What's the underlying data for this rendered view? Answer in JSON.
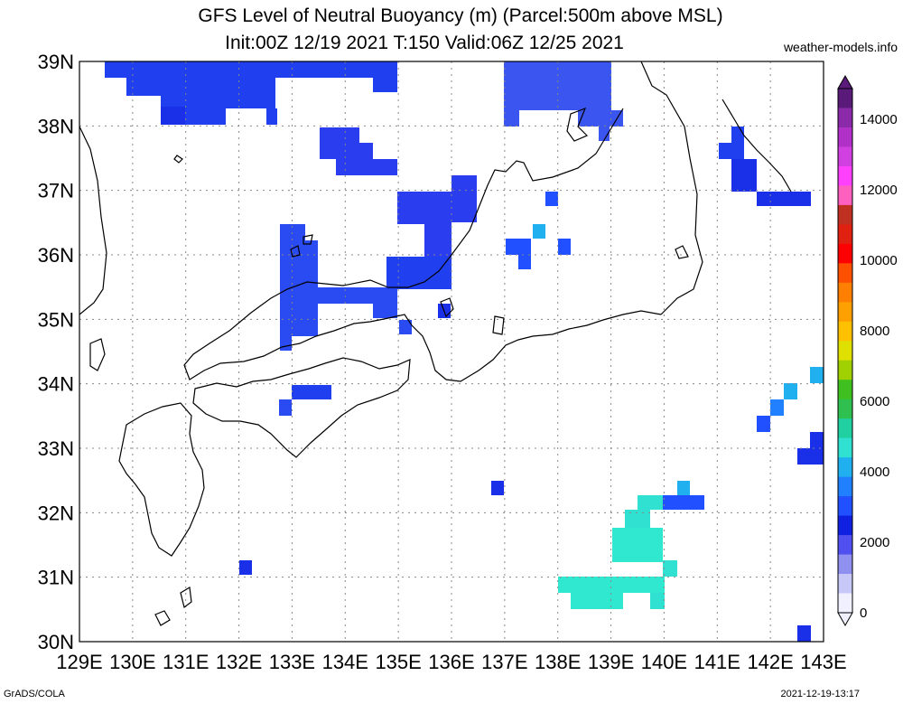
{
  "header": {
    "title": "GFS Level of Neutral Buoyancy (m) (Parcel:500m above MSL)",
    "subtitle": "Init:00Z 12/19 2021 T:150 Valid:06Z 12/25 2021",
    "site": "weather-models.info"
  },
  "footer": {
    "left": "GrADS/COLA",
    "right": "2021-12-19-13:17"
  },
  "map": {
    "lat_labels": [
      "39N",
      "38N",
      "37N",
      "36N",
      "35N",
      "34N",
      "33N",
      "32N",
      "31N",
      "30N"
    ],
    "lon_labels": [
      "129E",
      "130E",
      "131E",
      "132E",
      "133E",
      "134E",
      "135E",
      "136E",
      "137E",
      "138E",
      "139E",
      "140E",
      "141E",
      "142E",
      "143E"
    ],
    "colors": {
      "coast": "#000000",
      "grid": "#888888"
    }
  },
  "colorbar": {
    "labels": [
      "14000",
      "12000",
      "10000",
      "8000",
      "6000",
      "4000",
      "2000",
      "0"
    ],
    "colors": [
      "#5a1a7a",
      "#8a2aa8",
      "#b030c8",
      "#d040e0",
      "#ff40ff",
      "#ff60c0",
      "#c03020",
      "#e02010",
      "#ff0000",
      "#ff5000",
      "#ff8000",
      "#ffa000",
      "#ffc000",
      "#e0e000",
      "#a0d000",
      "#40c020",
      "#30c050",
      "#20d0a0",
      "#30e0d0",
      "#20b0f0",
      "#2080ff",
      "#2050ff",
      "#1020e0",
      "#5050f0",
      "#9090f0",
      "#c8c8f8",
      "#f0f0ff"
    ]
  }
}
